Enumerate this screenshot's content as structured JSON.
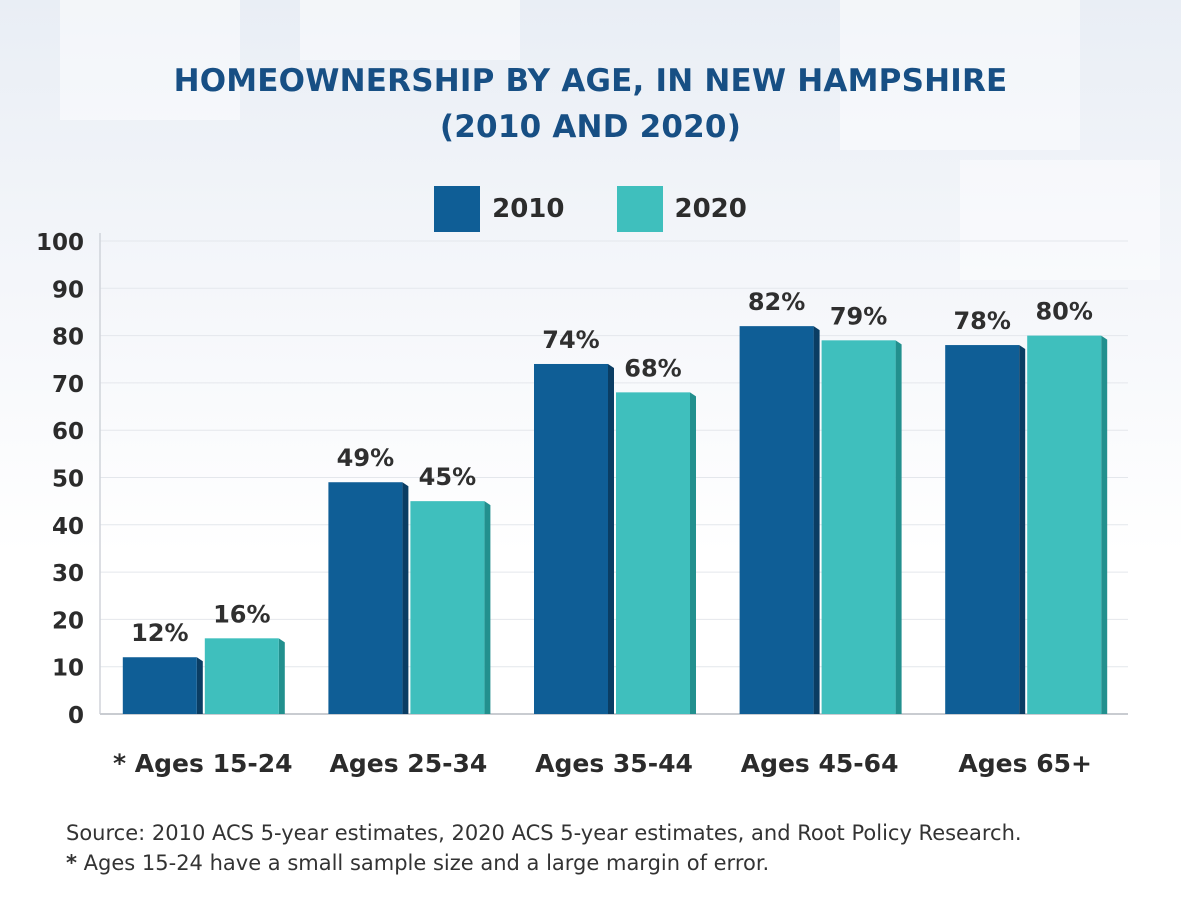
{
  "chart_data": {
    "type": "bar",
    "title_lines": [
      "HOMEOWNERSHIP BY AGE, IN NEW HAMPSHIRE",
      "(2010 AND 2020)"
    ],
    "categories": [
      "* Ages 15-24",
      "Ages 25-34",
      "Ages 35-44",
      "Ages 45-64",
      "Ages 65+"
    ],
    "series": [
      {
        "name": "2010",
        "values": [
          12,
          49,
          74,
          82,
          78
        ],
        "labels": [
          "12%",
          "49%",
          "74%",
          "82%",
          "78%"
        ],
        "color": "#0f5e96"
      },
      {
        "name": "2020",
        "values": [
          16,
          45,
          68,
          79,
          80
        ],
        "labels": [
          "16%",
          "45%",
          "68%",
          "79%",
          "80%"
        ],
        "color": "#3fbfbd"
      }
    ],
    "yticks": [
      "0",
      "10",
      "20",
      "30",
      "40",
      "50",
      "60",
      "70",
      "80",
      "90",
      "100"
    ],
    "ylim": [
      0,
      100
    ],
    "grid": true,
    "legend_position": "top-center"
  },
  "footnote": {
    "source": "Source: 2010 ACS 5-year estimates, 2020 ACS 5-year estimates, and Root Policy Research.",
    "star": "*",
    "note": " Ages 15-24 have a small sample size and a large margin of error."
  },
  "colors": {
    "title": "#174f84",
    "series_2010_side": "#0a3d63",
    "series_2020_side": "#22908e"
  }
}
